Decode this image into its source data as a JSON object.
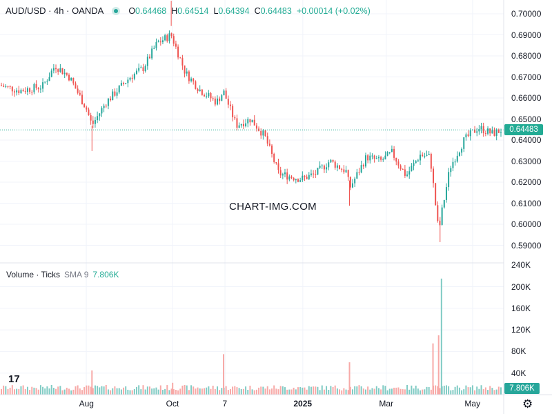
{
  "header": {
    "symbol": "AUD/USD · 4h · OANDA",
    "ohlc": [
      {
        "key": "O",
        "value": "0.64468"
      },
      {
        "key": "H",
        "value": "0.64514"
      },
      {
        "key": "L",
        "value": "0.64394"
      },
      {
        "key": "C",
        "value": "0.64483"
      }
    ],
    "change": "+0.00014 (+0.02%)"
  },
  "volume_header": {
    "title": "Volume · Ticks",
    "sma_label": "SMA 9",
    "sma_value": "7.806K"
  },
  "watermark": "CHART-IMG.COM",
  "logo": "17",
  "price_tag": "0.64483",
  "volume_tag": "7.806K",
  "colors": {
    "up": "#26a69a",
    "down": "#ef5350",
    "up_vol": "#80cbc4",
    "down_vol": "#f7a9a7",
    "grid": "#f0f3fa",
    "axis_text": "#131722",
    "price_line": "#22ab94"
  },
  "chart_data": [
    {
      "type": "candlestick",
      "title": "AUD/USD · 4h · OANDA",
      "x_tick_labels": [
        "Aug",
        "Oct",
        "7",
        "2025",
        "Mar",
        "May"
      ],
      "y_tick_labels": [
        "0.70000",
        "0.69000",
        "0.68000",
        "0.67000",
        "0.66000",
        "0.65000",
        "0.64000",
        "0.63000",
        "0.62000",
        "0.61000",
        "0.60000",
        "0.59000"
      ],
      "ylim": [
        0.585,
        0.7015
      ],
      "last_price": 0.64483,
      "grid": true,
      "series": [
        {
          "name": "AUD/USD",
          "x": [
            "2024-06-01",
            "2024-06-15",
            "2024-07-01",
            "2024-07-10",
            "2024-07-20",
            "2024-08-01",
            "2024-08-05",
            "2024-08-15",
            "2024-09-01",
            "2024-09-10",
            "2024-09-20",
            "2024-09-30",
            "2024-10-10",
            "2024-10-20",
            "2024-11-01",
            "2024-11-06",
            "2024-11-15",
            "2024-11-25",
            "2024-12-05",
            "2024-12-15",
            "2024-12-31",
            "2025-01-10",
            "2025-01-20",
            "2025-02-01",
            "2025-02-03",
            "2025-02-15",
            "2025-02-25",
            "2025-03-05",
            "2025-03-15",
            "2025-03-25",
            "2025-04-01",
            "2025-04-07",
            "2025-04-09",
            "2025-04-15",
            "2025-04-25",
            "2025-05-05",
            "2025-05-15",
            "2025-05-22"
          ],
          "close": [
            0.666,
            0.6635,
            0.6655,
            0.6755,
            0.67,
            0.655,
            0.647,
            0.658,
            0.67,
            0.674,
            0.686,
            0.69,
            0.672,
            0.664,
            0.658,
            0.663,
            0.647,
            0.65,
            0.642,
            0.624,
            0.6215,
            0.624,
            0.63,
            0.625,
            0.617,
            0.632,
            0.63,
            0.634,
            0.623,
            0.633,
            0.632,
            0.596,
            0.605,
            0.627,
            0.64,
            0.646,
            0.643,
            0.6448
          ]
        }
      ]
    },
    {
      "type": "bar",
      "title": "Volume · Ticks",
      "y_tick_labels": [
        "240K",
        "200K",
        "160K",
        "120K",
        "80K",
        "40K"
      ],
      "ylim": [
        0,
        240000
      ],
      "sma_9_last": 7806,
      "series": [
        {
          "name": "Volume",
          "x": [
            "2024-08-05",
            "2024-10-01",
            "2024-11-06",
            "2025-02-03",
            "2025-04-03",
            "2025-04-07",
            "2025-04-09"
          ],
          "values": [
            45000,
            22000,
            75000,
            60000,
            95000,
            110000,
            215000
          ]
        }
      ]
    }
  ]
}
